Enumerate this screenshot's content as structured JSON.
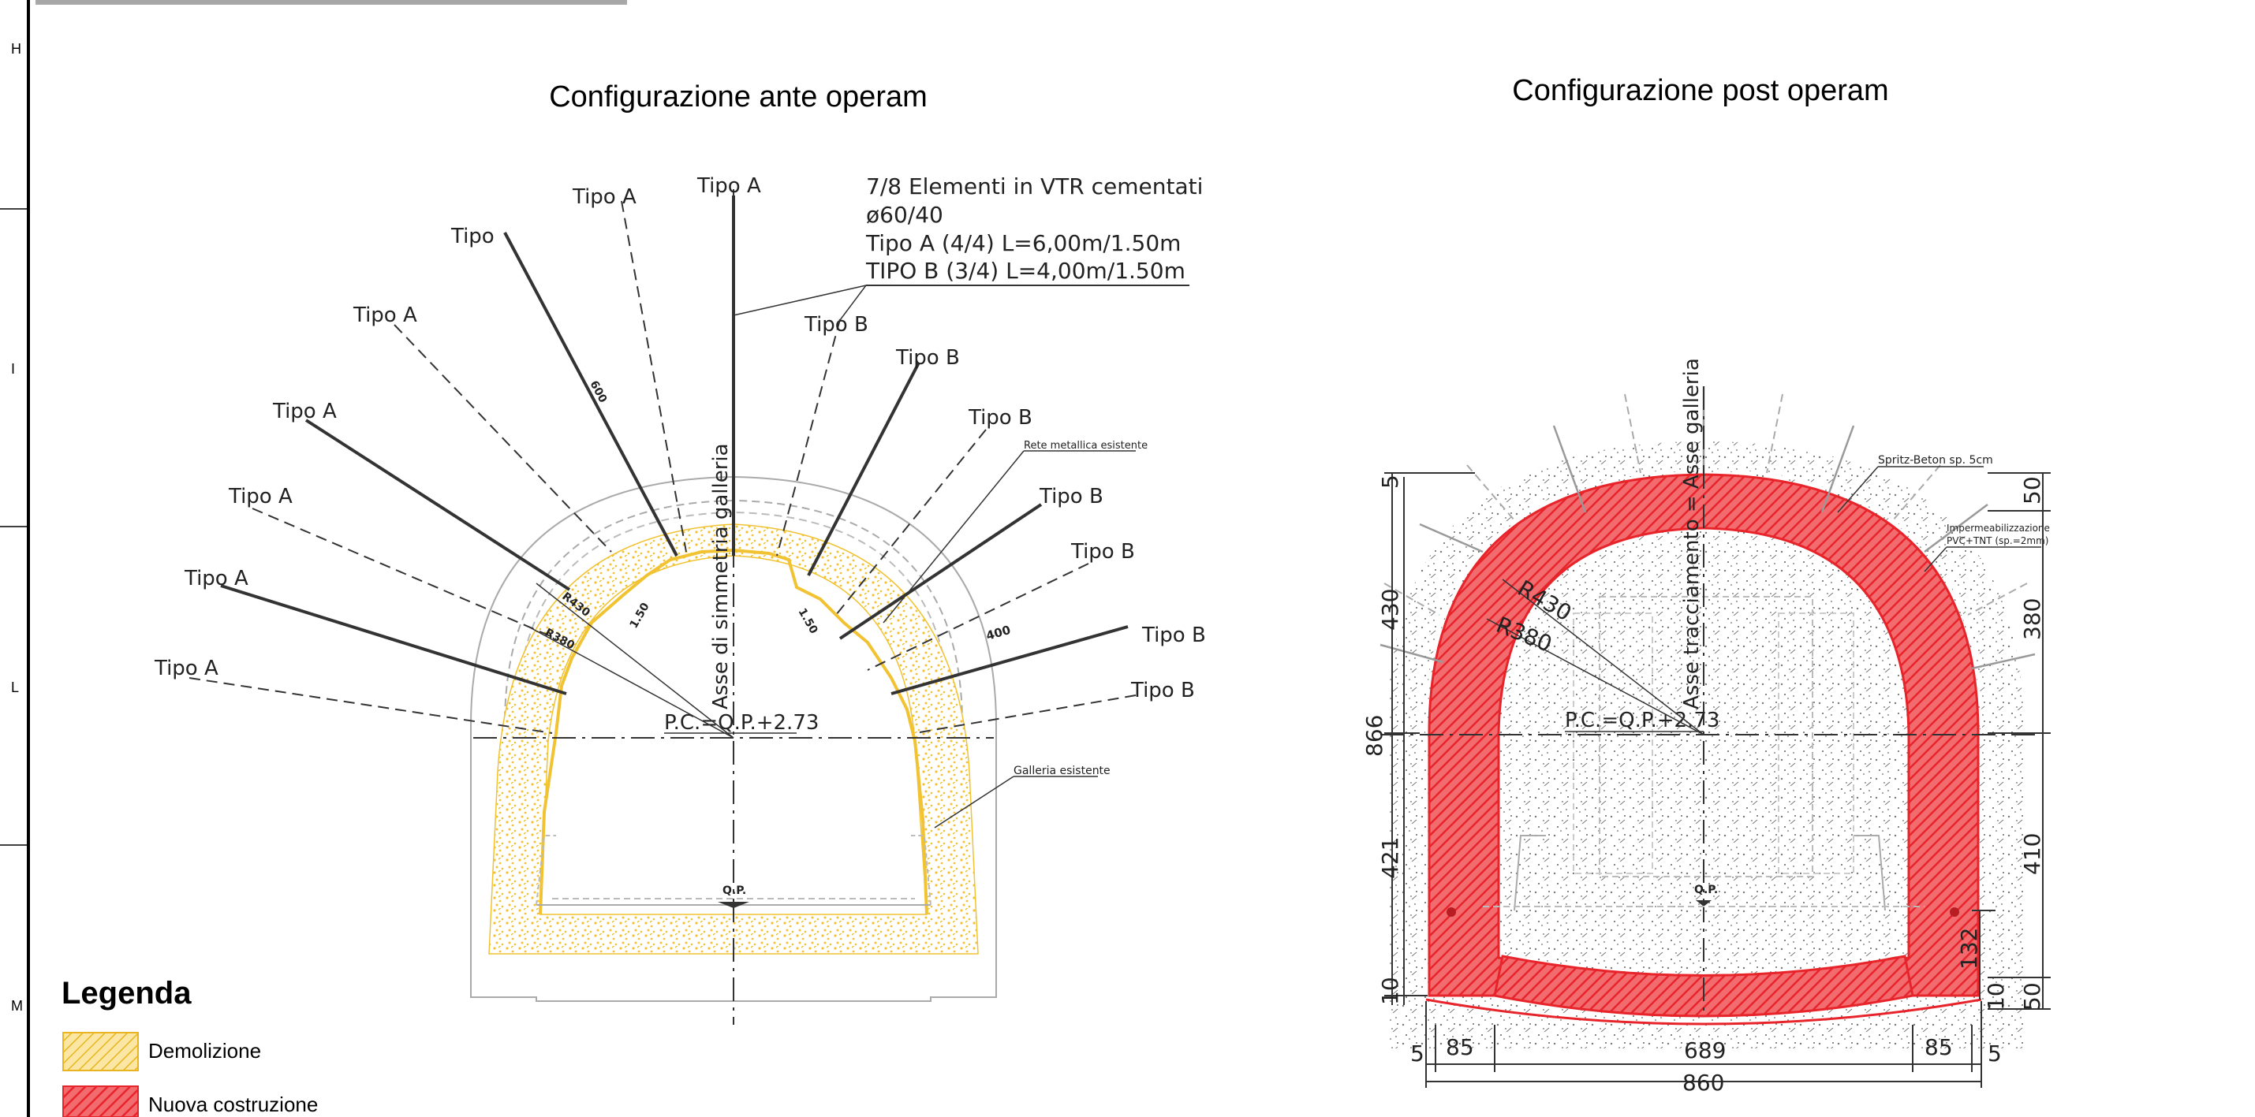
{
  "titles": {
    "ante": "Configurazione ante operam",
    "post": "Configurazione post operam"
  },
  "ruler": {
    "letters": [
      "H",
      "I",
      "L",
      "M"
    ]
  },
  "ante": {
    "note": {
      "line1": "7/8 Elementi in VTR cementati",
      "line2": "ø60/40",
      "line3": "Tipo A (4/4) L=6,00m/1.50m",
      "line4": "TIPO B (3/4) L=4,00m/1.50m"
    },
    "tipo_a": "Tipo A",
    "tipo_b": "Tipo B",
    "tipo_partial": "Tipo",
    "rete": "Rete metallica esistente",
    "galleria": "Galleria esistente",
    "asse": "Asse di simmetria galleria",
    "pc": "P.C.=Q.P.+2.73",
    "qp": "Q.P.",
    "dims": {
      "d600": "600",
      "d150a": "1.50",
      "d150b": "1.50",
      "d400": "400",
      "r430": "R430",
      "r380": "R380"
    }
  },
  "post": {
    "asse": "Asse tracciamento = Asse galleria",
    "spritz": "Spritz-Beton sp. 5cm",
    "imperm1": "Impermeabilizzazione",
    "imperm2": "PVC+TNT (sp.=2mm)",
    "pc": "P.C.=Q.P.+2.73",
    "qp": "Q.P.",
    "r430": "R430",
    "r380": "R380",
    "dims": {
      "left_5": "5",
      "left_430": "430",
      "left_866": "866",
      "left_421": "421",
      "left_10": "10",
      "right_50_top": "50",
      "right_380": "380",
      "right_410": "410",
      "right_132": "132",
      "right_10": "10",
      "right_50_bot": "50",
      "bot_5_left": "5",
      "bot_85_left": "85",
      "bot_689": "689",
      "bot_85_right": "85",
      "bot_5_right": "5",
      "bot_860": "860"
    }
  },
  "legend": {
    "title": "Legenda",
    "items": [
      {
        "label": "Demolizione",
        "color": "#f3c43a"
      },
      {
        "label": "Nuova costruzione",
        "color": "#e8242b"
      }
    ]
  },
  "colors": {
    "demolition": "#f3c43a",
    "construction": "#e8242b",
    "line": "#333333",
    "ghost": "#9a9a9a"
  }
}
